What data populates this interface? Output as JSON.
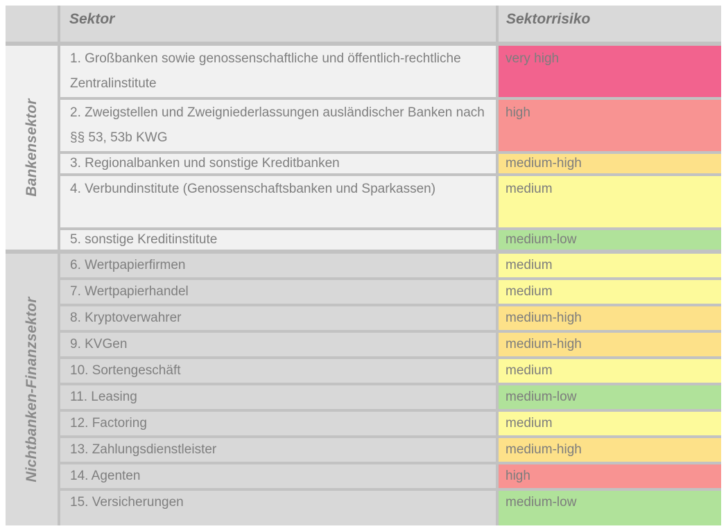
{
  "header": {
    "sektor": "Sektor",
    "sektorrisiko": "Sektorrisiko"
  },
  "risk_colors": {
    "very high": "#F2638E",
    "high": "#F89392",
    "medium-high": "#FDE189",
    "medium": "#FDFA9B",
    "medium-low": "#B0E29A"
  },
  "table": {
    "groups": [
      {
        "label": "Bankensektor",
        "rows": [
          {
            "name": "1. Großbanken sowie genossenschaftliche und öffentlich-rechtliche Zentralinstitute",
            "risk": "very high"
          },
          {
            "name": "2. Zweigstellen und Zweigniederlassungen ausländischer Banken nach §§ 53, 53b KWG",
            "risk": "high"
          },
          {
            "name": "3. Regionalbanken und sonstige Kreditbanken",
            "risk": "medium-high"
          },
          {
            "name": "4. Verbundinstitute (Genossenschaftsbanken und Sparkassen)",
            "risk": "medium"
          },
          {
            "name": "5. sonstige Kreditinstitute",
            "risk": "medium-low"
          }
        ]
      },
      {
        "label": "Nichtbanken-Finanzsektor",
        "rows": [
          {
            "name": "6. Wertpapierfirmen",
            "risk": "medium"
          },
          {
            "name": "7. Wertpapierhandel",
            "risk": "medium"
          },
          {
            "name": "8. Kryptoverwahrer",
            "risk": "medium-high"
          },
          {
            "name": "9. KVGen",
            "risk": "medium-high"
          },
          {
            "name": "10. Sortengeschäft",
            "risk": "medium"
          },
          {
            "name": "11. Leasing",
            "risk": "medium-low"
          },
          {
            "name": "12. Factoring",
            "risk": "medium"
          },
          {
            "name": "13. Zahlungsdienstleister",
            "risk": "medium-high"
          },
          {
            "name": "14. Agenten",
            "risk": "high"
          },
          {
            "name": "15. Versicherungen",
            "risk": "medium-low"
          }
        ]
      }
    ]
  }
}
